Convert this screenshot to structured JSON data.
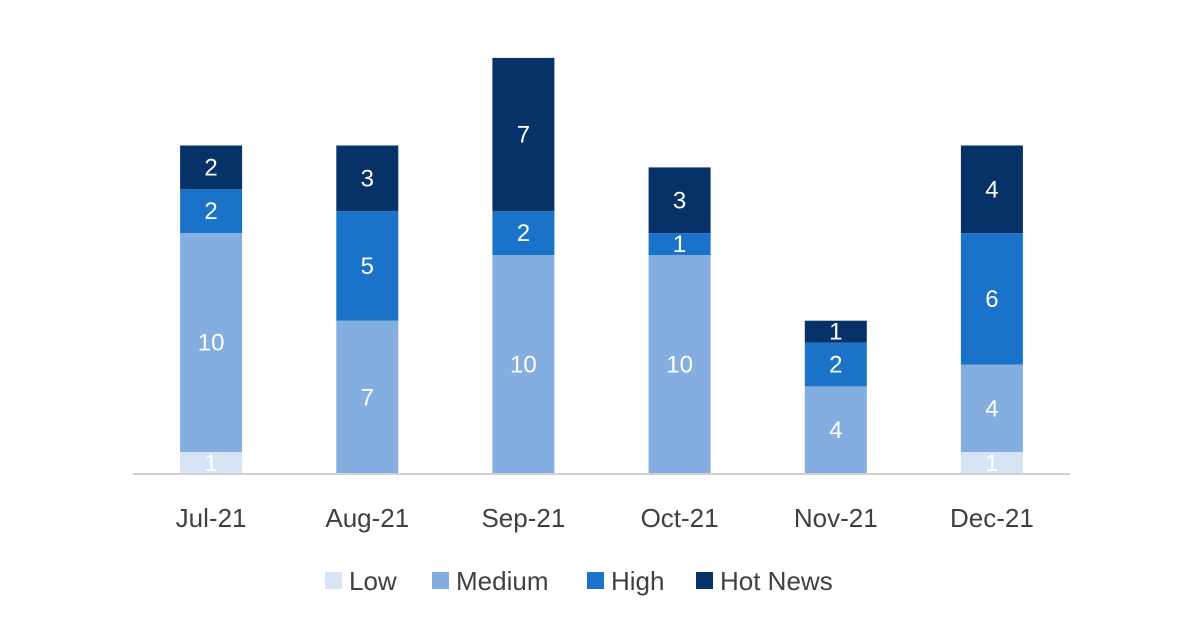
{
  "chart_data": {
    "type": "bar",
    "stacked": true,
    "categories": [
      "Jul-21",
      "Aug-21",
      "Sep-21",
      "Oct-21",
      "Nov-21",
      "Dec-21"
    ],
    "series": [
      {
        "name": "Low",
        "color": "#d6e4f5",
        "values": [
          1,
          0,
          0,
          0,
          0,
          1
        ]
      },
      {
        "name": "Medium",
        "color": "#85aee0",
        "values": [
          10,
          7,
          10,
          10,
          4,
          4
        ]
      },
      {
        "name": "High",
        "color": "#1a73c9",
        "values": [
          2,
          5,
          2,
          1,
          2,
          6
        ]
      },
      {
        "name": "Hot News",
        "color": "#073267",
        "values": [
          2,
          3,
          7,
          3,
          1,
          4
        ]
      }
    ],
    "ylim": [
      0,
      19
    ],
    "grid": false,
    "legend": "bottom",
    "title": "",
    "xlabel": "",
    "ylabel": ""
  }
}
